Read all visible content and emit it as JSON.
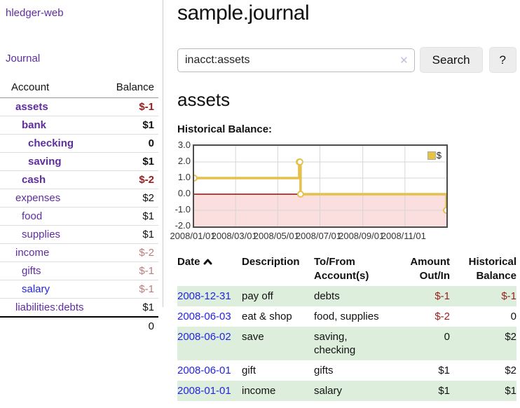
{
  "sidebar": {
    "app_title": "hledger-web",
    "journal_link": "Journal",
    "account_header": "Account",
    "balance_header": "Balance",
    "accounts": [
      {
        "name": "assets",
        "balance": "$-1"
      },
      {
        "name": "bank",
        "balance": "$1"
      },
      {
        "name": "checking",
        "balance": "0"
      },
      {
        "name": "saving",
        "balance": "$1"
      },
      {
        "name": "cash",
        "balance": "$-2"
      },
      {
        "name": "expenses",
        "balance": "$2"
      },
      {
        "name": "food",
        "balance": "$1"
      },
      {
        "name": "supplies",
        "balance": "$1"
      },
      {
        "name": "income",
        "balance": "$-2"
      },
      {
        "name": "gifts",
        "balance": "$-1"
      },
      {
        "name": "salary",
        "balance": "$-1"
      },
      {
        "name": "liabilities:debts",
        "balance": "$1"
      }
    ],
    "total": "0"
  },
  "header": {
    "title": "sample.journal"
  },
  "search": {
    "value": "inacct:assets",
    "clear_icon": "✕",
    "button_label": "Search",
    "help_label": "?"
  },
  "account_page": {
    "title": "assets",
    "chart_label": "Historical Balance:"
  },
  "chart_data": {
    "type": "line",
    "title": "Historical Balance:",
    "step": true,
    "x_range": [
      "2008-01-01",
      "2008-12-31"
    ],
    "ylim": [
      -2,
      3
    ],
    "y_ticks": [
      "3.0",
      "2.0",
      "1.0",
      "0.0",
      "-1.0",
      "-2.0"
    ],
    "x_ticks": [
      "2008/01/01",
      "2008/03/01",
      "2008/05/01",
      "2008/07/01",
      "2008/09/01",
      "2008/11/01"
    ],
    "series": [
      {
        "name": "$",
        "color": "#e5c14b",
        "marker_fill": "#ffffff",
        "points": [
          [
            "2008-01-01",
            1
          ],
          [
            "2008-06-01",
            2
          ],
          [
            "2008-06-02",
            2
          ],
          [
            "2008-06-03",
            0
          ],
          [
            "2008-12-31",
            -1
          ]
        ]
      }
    ],
    "negative_fill": "#fbdede",
    "zero_line_color": "#8f0f0f",
    "grid_color": "#d6d6d6",
    "legend_position": "top-right"
  },
  "table": {
    "headers": [
      "Date",
      "Description",
      "To/From Account(s)",
      "Amount Out/In",
      "Historical Balance"
    ],
    "rows": [
      {
        "date": "2008-12-31",
        "description": "pay off",
        "accounts": "debts",
        "amount": "$-1",
        "balance": "$-1"
      },
      {
        "date": "2008-06-03",
        "description": "eat & shop",
        "accounts": "food, supplies",
        "amount": "$-2",
        "balance": "0"
      },
      {
        "date": "2008-06-02",
        "description": "save",
        "accounts": "saving, checking",
        "amount": "0",
        "balance": "$2"
      },
      {
        "date": "2008-06-01",
        "description": "gift",
        "accounts": "gifts",
        "amount": "$1",
        "balance": "$2"
      },
      {
        "date": "2008-01-01",
        "description": "income",
        "accounts": "salary",
        "amount": "$1",
        "balance": "$1"
      }
    ]
  }
}
